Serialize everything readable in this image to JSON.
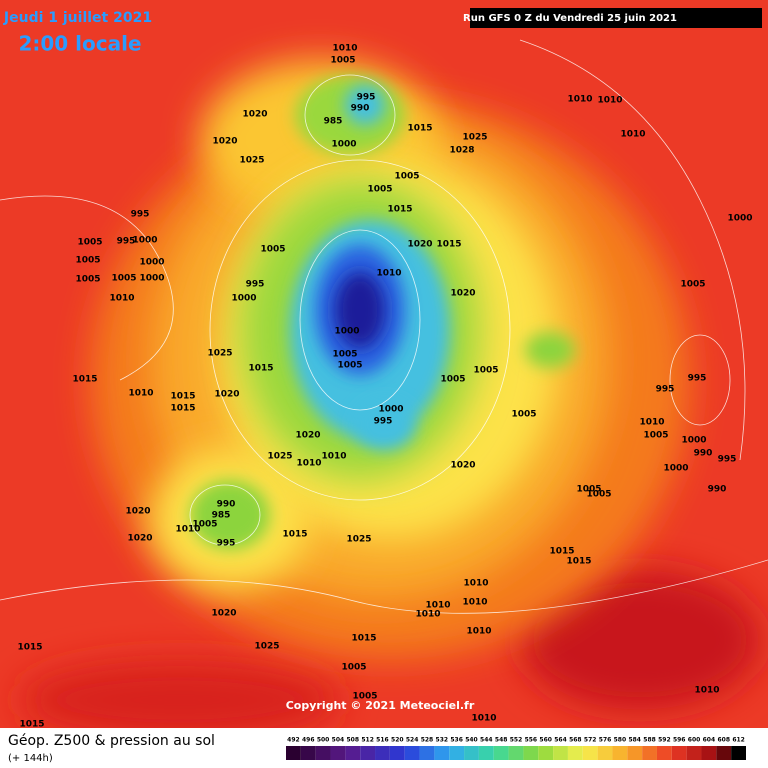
{
  "header": {
    "date": "Jeudi 1 juillet 2021",
    "time": "2:00 locale",
    "run": "Run GFS 0 Z du Vendredi 25 juin 2021"
  },
  "footer": {
    "title": "Géop. Z500 & pression au sol",
    "lead": "(+ 144h)",
    "copyright": "Copyright © 2021 Meteociel.fr"
  },
  "legend": {
    "ticks": [
      492,
      496,
      500,
      504,
      508,
      512,
      516,
      520,
      524,
      528,
      532,
      536,
      540,
      544,
      548,
      552,
      556,
      560,
      564,
      568,
      572,
      576,
      580,
      584,
      588,
      592,
      596,
      600,
      604,
      608,
      612
    ]
  },
  "isobar_labels": [
    1010,
    1005,
    995,
    990,
    985,
    1000,
    1020,
    1020,
    1025,
    1015,
    1025,
    1028,
    1010,
    1010,
    1010,
    1005,
    1005,
    1015,
    995,
    1005,
    995,
    1000,
    1005,
    1000,
    1005,
    1005,
    1000,
    1010,
    1005,
    1020,
    1015,
    1010,
    1000,
    1005,
    1020,
    995,
    1000,
    1000,
    1025,
    1015,
    1005,
    1005,
    1015,
    1005,
    1005,
    995,
    995,
    1010,
    1015,
    1015,
    1020,
    1005,
    1000,
    995,
    1010,
    1005,
    1000,
    1020,
    1025,
    1010,
    1010,
    1020,
    990,
    995,
    1000,
    990,
    1005,
    1005,
    990,
    985,
    1020,
    1010,
    1005,
    995,
    1015,
    1020,
    1025,
    1015,
    1015,
    1010,
    1010,
    1010,
    1010,
    1010,
    1020,
    1015,
    1025,
    1015,
    1005,
    1005,
    1010,
    1010,
    1015
  ]
}
